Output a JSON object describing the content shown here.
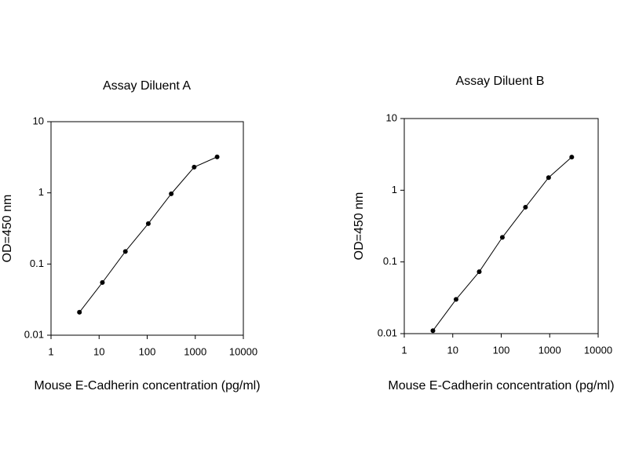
{
  "chart_data": [
    {
      "type": "line",
      "title": "Assay Diluent A",
      "x_label": "Mouse E-Cadherin concentration (pg/ml)",
      "y_label": "OD=450 nm",
      "x_log": true,
      "y_log": true,
      "color": "#000000",
      "x": [
        3.9,
        11.7,
        35.2,
        105.5,
        316.4,
        949.2,
        2847.7
      ],
      "values": [
        0.021,
        0.055,
        0.15,
        0.37,
        0.97,
        2.3,
        3.2
      ],
      "xlim": [
        1,
        10000
      ],
      "xticks": [
        1,
        10,
        100,
        1000,
        10000
      ],
      "ylim": [
        0.01,
        10
      ],
      "yticks": [
        0.01,
        0.1,
        1,
        10
      ]
    },
    {
      "type": "line",
      "title": "Assay Diluent B",
      "x_label": "Mouse E-Cadherin concentration (pg/ml)",
      "y_label": "OD=450 nm",
      "x_log": true,
      "y_log": true,
      "color": "#000000",
      "x": [
        3.9,
        11.7,
        35.2,
        105.5,
        316.4,
        949.2,
        2847.7
      ],
      "values": [
        0.011,
        0.03,
        0.073,
        0.22,
        0.58,
        1.5,
        2.9
      ],
      "xlim": [
        1,
        10000
      ],
      "xticks": [
        1,
        10,
        100,
        1000,
        10000
      ],
      "ylim": [
        0.01,
        10
      ],
      "yticks": [
        0.01,
        0.1,
        1,
        10
      ]
    }
  ]
}
